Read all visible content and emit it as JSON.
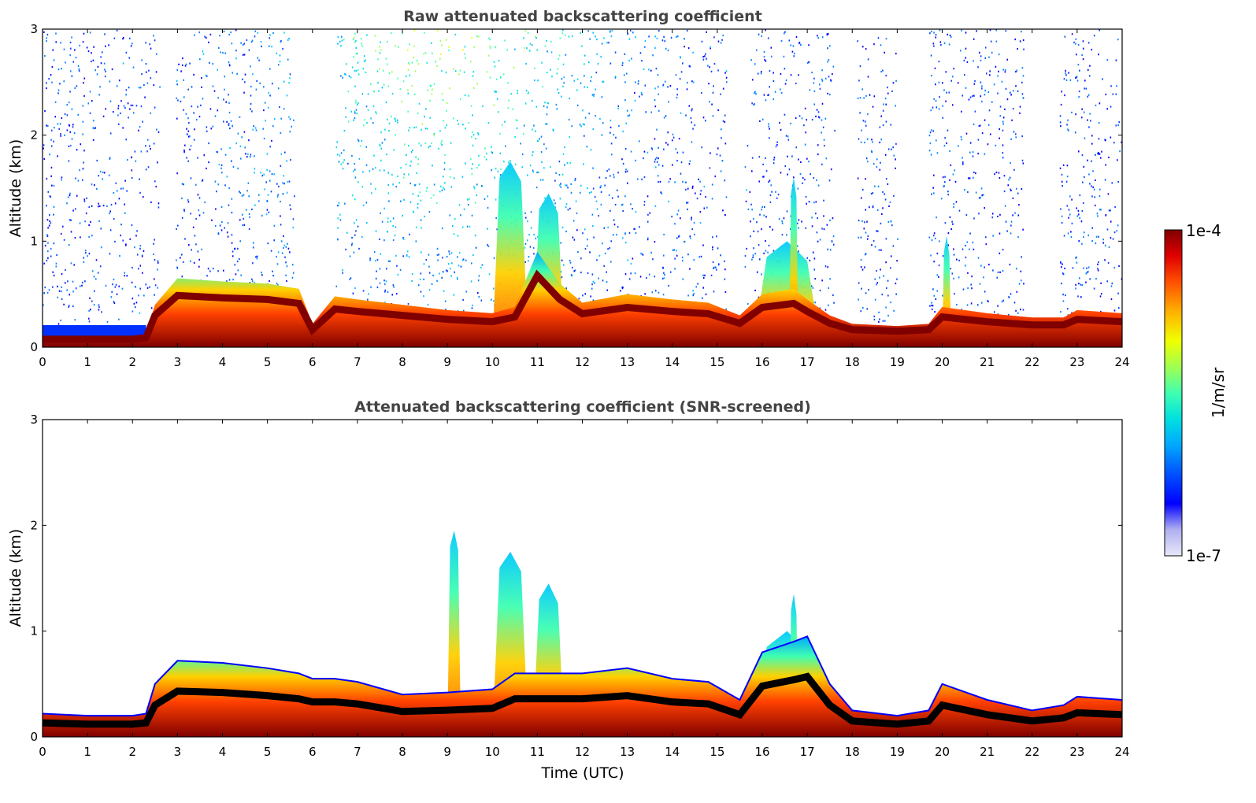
{
  "colors": {
    "colormap": [
      "#e8e8f8",
      "#b0b0f0",
      "#0000ff",
      "#0050ff",
      "#00a8ff",
      "#00e0e0",
      "#40ffb0",
      "#a0ff50",
      "#f0ff00",
      "#ffb000",
      "#ff5000",
      "#e00000",
      "#800000"
    ],
    "axes": "#000000",
    "title": "#444444"
  },
  "colorbar": {
    "label": "1/m/sr",
    "max_label": "1e-4",
    "min_label": "1e-7"
  },
  "chart_data": [
    {
      "type": "heatmap",
      "title": "Raw attenuated backscattering coefficient",
      "xlabel": "",
      "ylabel": "Altitude (km)",
      "xlim": [
        0,
        24
      ],
      "ylim": [
        0,
        3
      ],
      "xticks": [
        "0",
        "1",
        "2",
        "3",
        "4",
        "5",
        "6",
        "7",
        "8",
        "9",
        "10",
        "11",
        "12",
        "13",
        "14",
        "15",
        "16",
        "17",
        "18",
        "19",
        "20",
        "21",
        "22",
        "23",
        "24"
      ],
      "yticks": [
        "0",
        "1",
        "2",
        "3"
      ],
      "screened": false,
      "layer": {
        "x": [
          0,
          1,
          2,
          2.3,
          2.5,
          3,
          4,
          5,
          5.7,
          6,
          6.5,
          7,
          8,
          9,
          10,
          10.5,
          11,
          11.5,
          12,
          13,
          14,
          14.8,
          15.5,
          16,
          16.7,
          17,
          17.5,
          18,
          19,
          19.7,
          20,
          21,
          22,
          22.7,
          23,
          24
        ],
        "base_top_km": [
          0.1,
          0.1,
          0.1,
          0.12,
          0.4,
          0.65,
          0.62,
          0.6,
          0.55,
          0.22,
          0.48,
          0.45,
          0.4,
          0.35,
          0.32,
          0.38,
          0.9,
          0.6,
          0.42,
          0.5,
          0.45,
          0.42,
          0.3,
          0.5,
          0.55,
          0.45,
          0.3,
          0.22,
          0.2,
          0.22,
          0.38,
          0.32,
          0.28,
          0.28,
          0.35,
          0.32
        ]
      },
      "plumes": [
        {
          "x0": 10.0,
          "x1": 10.8,
          "top_km": 1.75
        },
        {
          "x0": 10.9,
          "x1": 11.6,
          "top_km": 1.45
        },
        {
          "x0": 15.8,
          "x1": 17.3,
          "top_km": 1.0
        },
        {
          "x0": 16.6,
          "x1": 16.8,
          "top_km": 1.6
        },
        {
          "x0": 20.0,
          "x1": 20.2,
          "top_km": 1.05
        }
      ]
    },
    {
      "type": "heatmap",
      "title": "Attenuated backscattering coefficient (SNR-screened)",
      "xlabel": "Time (UTC)",
      "ylabel": "Altitude (km)",
      "xlim": [
        0,
        24
      ],
      "ylim": [
        0,
        3
      ],
      "xticks": [
        "0",
        "1",
        "2",
        "3",
        "4",
        "5",
        "6",
        "7",
        "8",
        "9",
        "10",
        "11",
        "12",
        "13",
        "14",
        "15",
        "16",
        "17",
        "18",
        "19",
        "20",
        "21",
        "22",
        "23",
        "24"
      ],
      "yticks": [
        "0",
        "1",
        "2",
        "3"
      ],
      "screened": true,
      "layer": {
        "x": [
          0,
          1,
          2,
          2.3,
          2.5,
          3,
          4,
          5,
          5.7,
          6,
          6.5,
          7,
          8,
          9,
          10,
          10.5,
          11,
          11.5,
          12,
          13,
          14,
          14.8,
          15.5,
          16,
          16.7,
          17,
          17.5,
          18,
          19,
          19.7,
          20,
          21,
          22,
          22.7,
          23,
          24
        ],
        "base_top_km": [
          0.22,
          0.2,
          0.2,
          0.22,
          0.5,
          0.72,
          0.7,
          0.65,
          0.6,
          0.55,
          0.55,
          0.52,
          0.4,
          0.42,
          0.45,
          0.6,
          0.6,
          0.6,
          0.6,
          0.65,
          0.55,
          0.52,
          0.35,
          0.8,
          0.9,
          0.95,
          0.5,
          0.25,
          0.2,
          0.25,
          0.5,
          0.35,
          0.25,
          0.3,
          0.38,
          0.35
        ]
      },
      "plumes": [
        {
          "x0": 10.0,
          "x1": 10.8,
          "top_km": 1.75
        },
        {
          "x0": 10.9,
          "x1": 11.6,
          "top_km": 1.45
        },
        {
          "x0": 15.8,
          "x1": 17.3,
          "top_km": 1.0
        },
        {
          "x0": 16.6,
          "x1": 16.8,
          "top_km": 1.35
        },
        {
          "x0": 9.0,
          "x1": 9.3,
          "top_km": 1.95
        }
      ]
    }
  ]
}
